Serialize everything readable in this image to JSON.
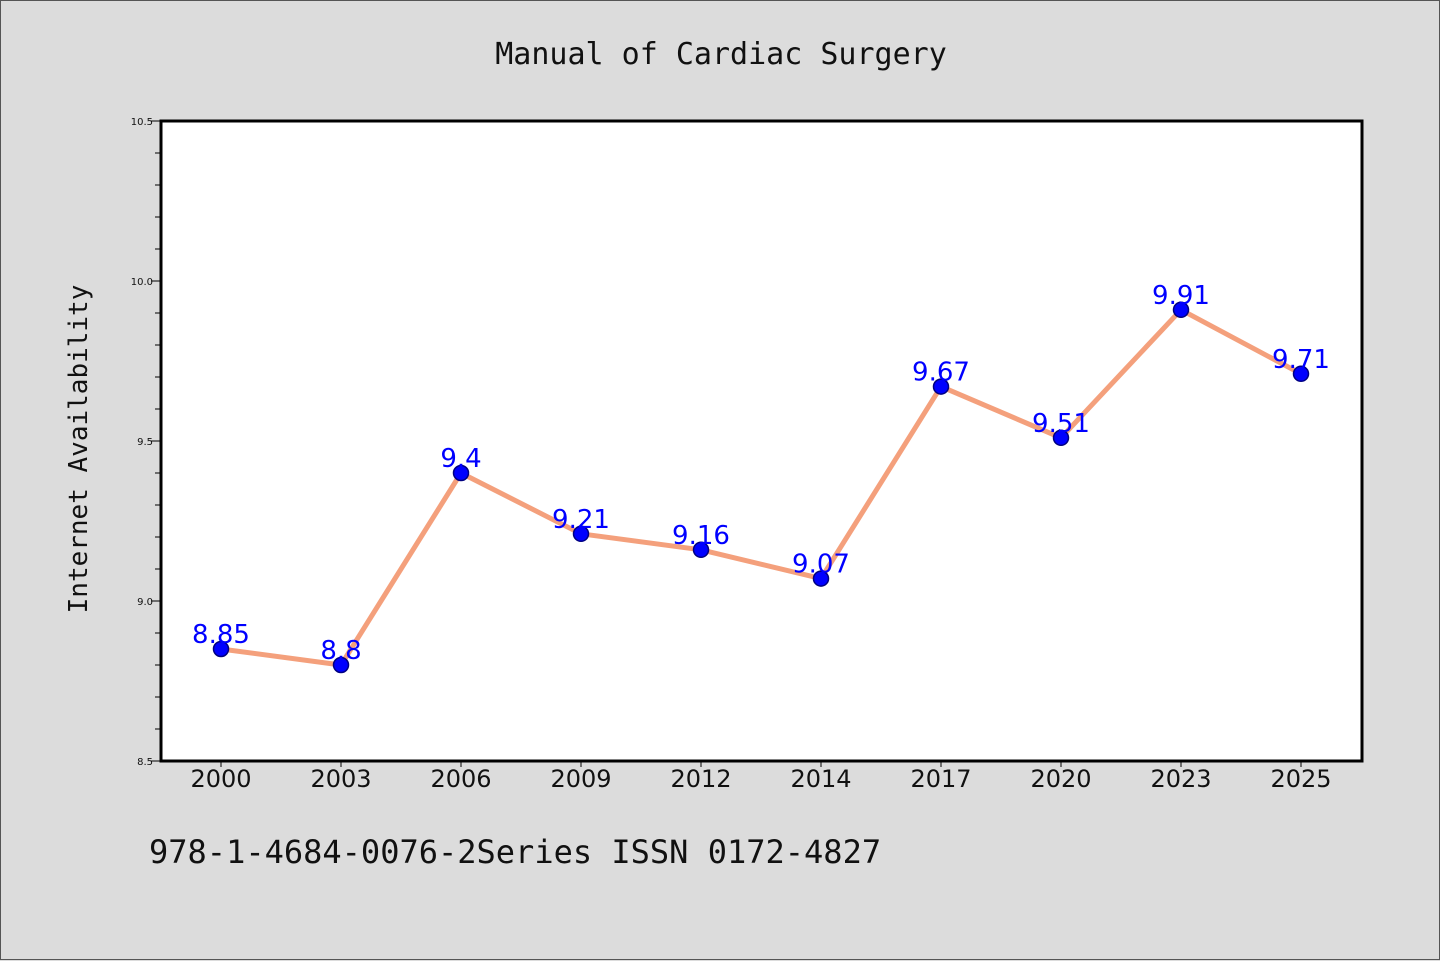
{
  "chart_data": {
    "type": "line",
    "title": "Manual of Cardiac Surgery",
    "xlabel": "",
    "ylabel": "Internet Availability",
    "categories": [
      "2000",
      "2003",
      "2006",
      "2009",
      "2012",
      "2014",
      "2017",
      "2020",
      "2023",
      "2025"
    ],
    "series": [
      {
        "values": [
          8.85,
          8.8,
          9.4,
          9.21,
          9.16,
          9.07,
          9.67,
          9.51,
          9.91,
          9.71
        ],
        "labels": [
          "8.85",
          "8.8",
          "9.4",
          "9.21",
          "9.16",
          "9.07",
          "9.67",
          "9.51",
          "9.91",
          "9.71"
        ]
      }
    ],
    "ylim": [
      8.5,
      10.5
    ],
    "yticks": [
      "8.5",
      "9.0",
      "9.5",
      "10.0",
      "10.5"
    ],
    "grid": false,
    "colors": {
      "line": "#f4a07c",
      "marker_fill": "#0000ff",
      "marker_stroke": "#000080",
      "data_label": "#0000ff",
      "background": "#dcdcdc",
      "plot_background": "#ffffff"
    }
  },
  "footer": {
    "text": "978-1-4684-0076-2Series ISSN 0172-4827"
  }
}
